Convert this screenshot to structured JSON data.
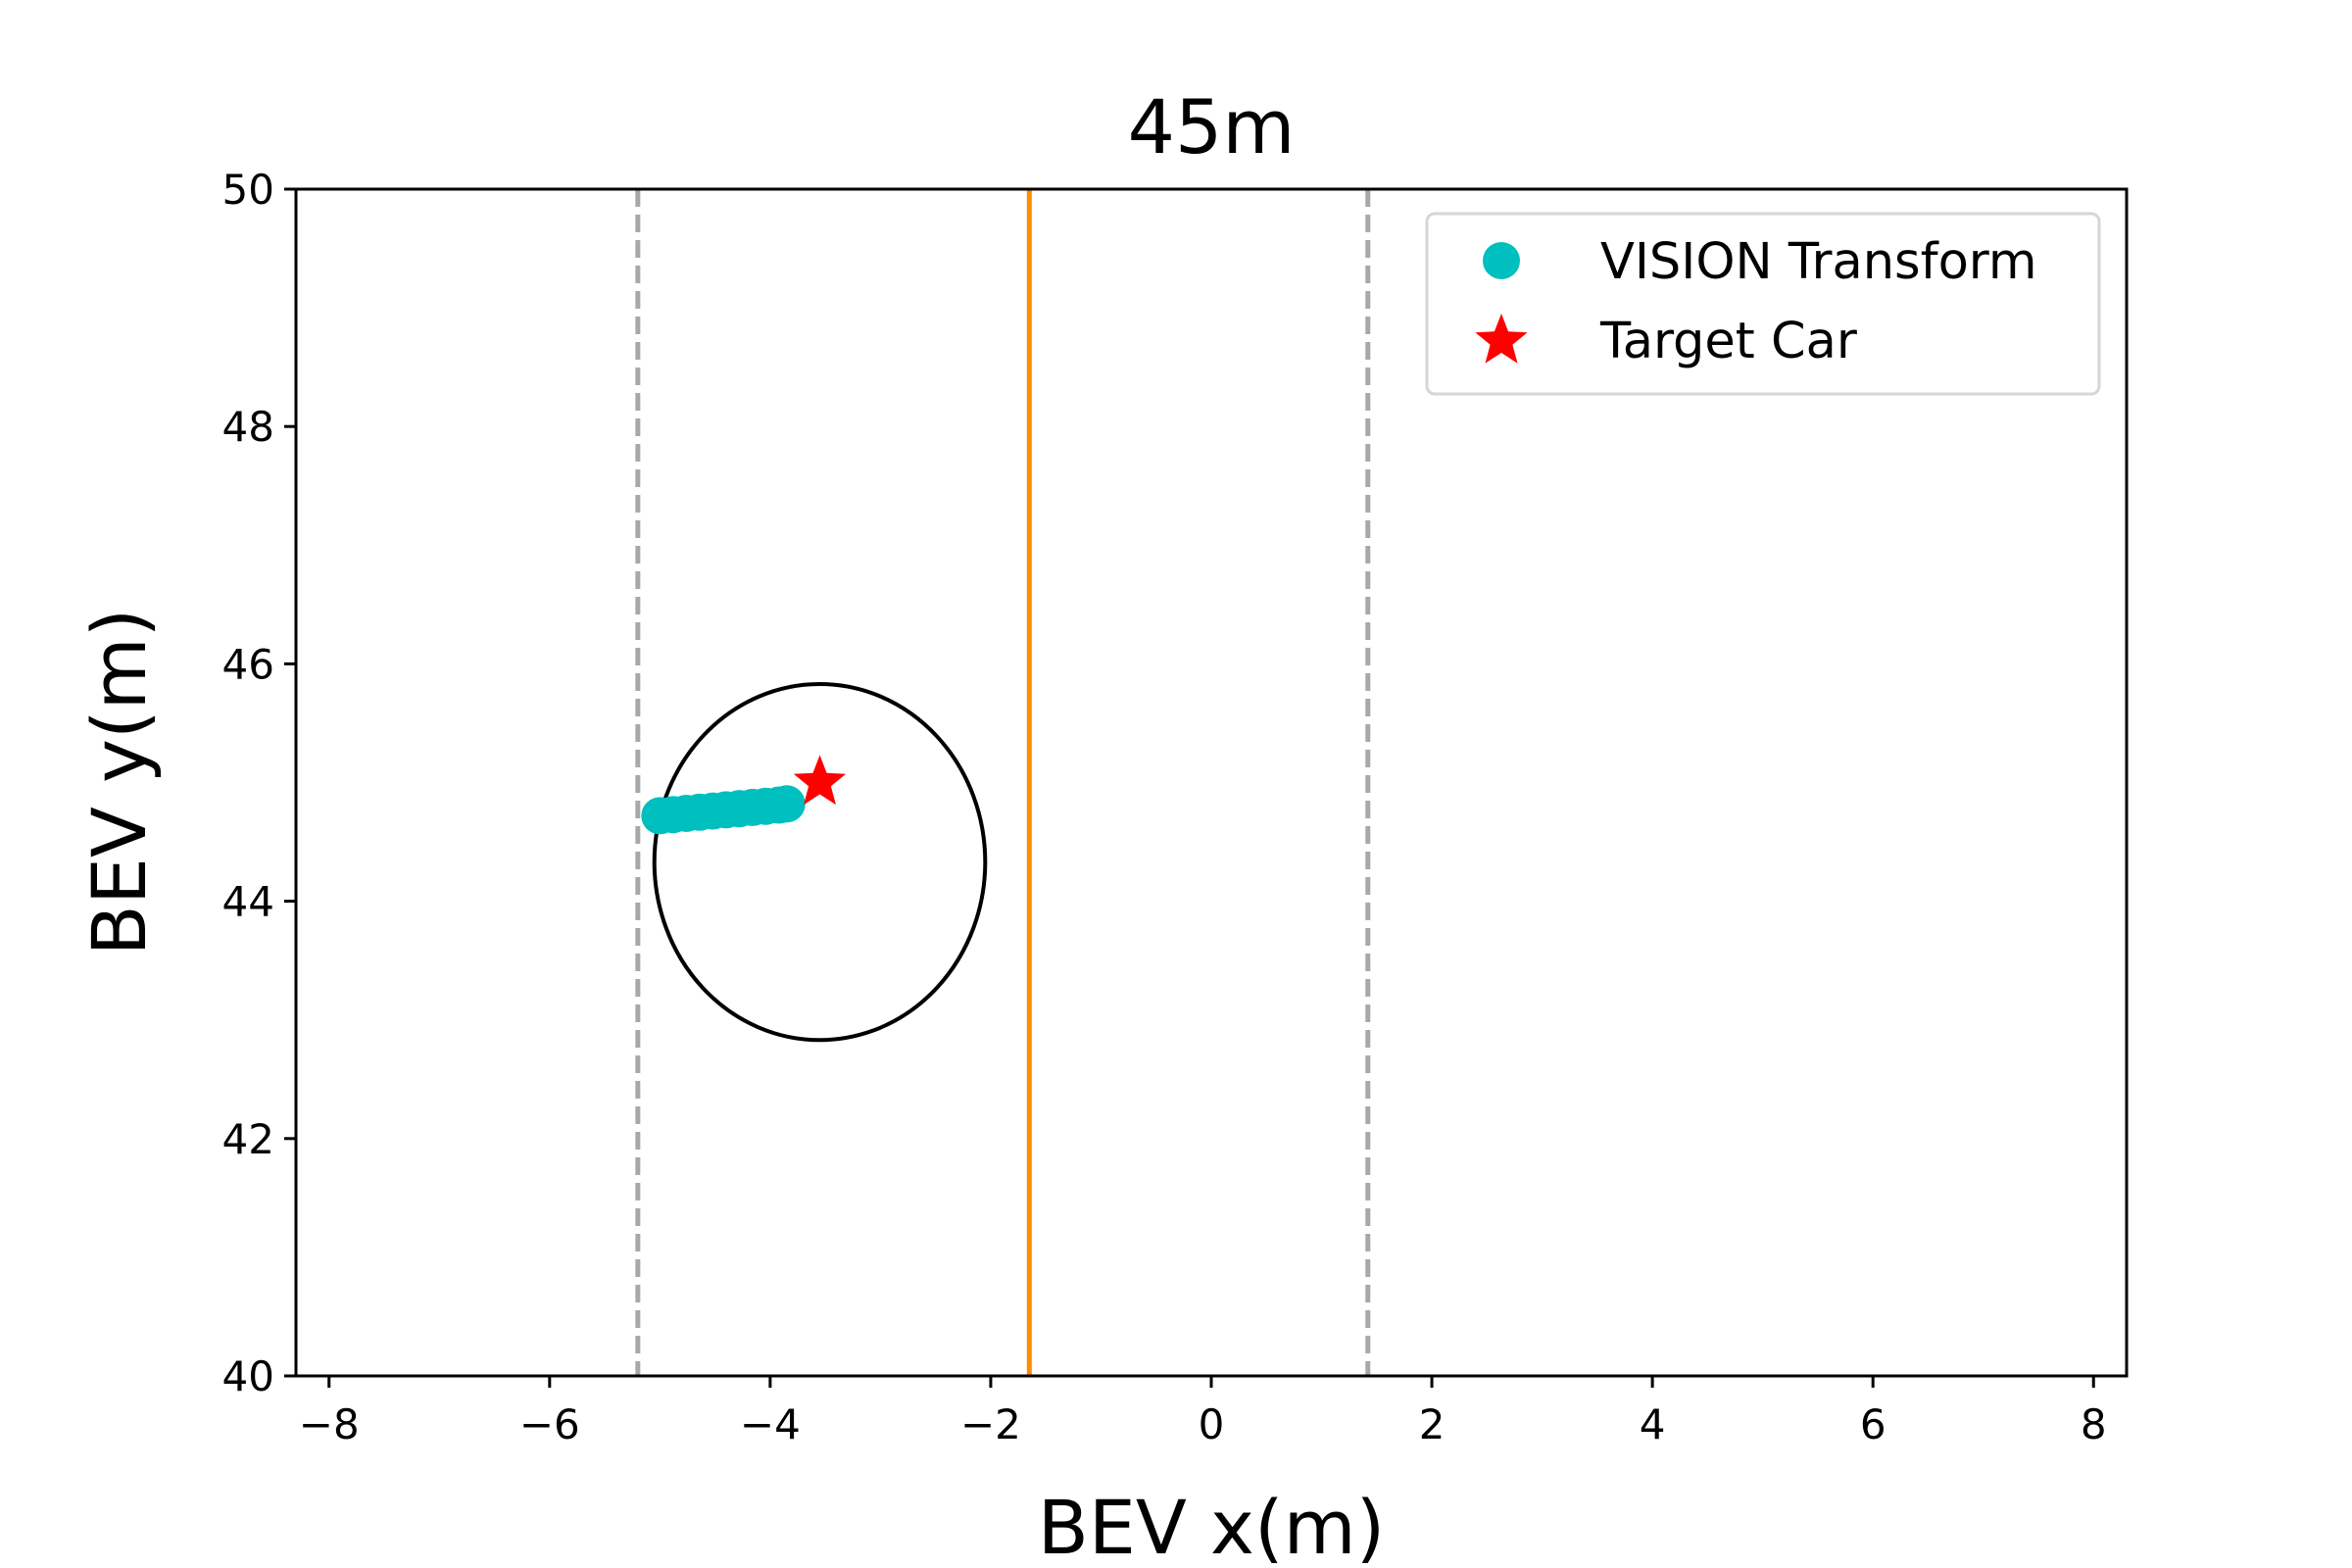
{
  "chart_data": {
    "type": "scatter",
    "title": "45m",
    "xlabel": "BEV x(m)",
    "ylabel": "BEV y(m)",
    "xlim": [
      -8.3,
      8.3
    ],
    "ylim": [
      40,
      50
    ],
    "xticks": [
      -8,
      -6,
      -4,
      -2,
      0,
      2,
      4,
      6,
      8
    ],
    "xtick_labels": [
      "−8",
      "−6",
      "−4",
      "−2",
      "0",
      "2",
      "4",
      "6",
      "8"
    ],
    "yticks": [
      40,
      42,
      44,
      46,
      48,
      50
    ],
    "ytick_labels": [
      "40",
      "42",
      "44",
      "46",
      "48",
      "50"
    ],
    "grid": false,
    "legend_position": "top-right",
    "series": [
      {
        "name": "VISION Transform",
        "marker": "circle",
        "color": "#00bfbf",
        "x": [
          -5.0,
          -4.88,
          -4.76,
          -4.64,
          -4.52,
          -4.4,
          -4.28,
          -4.16,
          -4.04,
          -3.92,
          -3.85
        ],
        "y": [
          44.72,
          44.73,
          44.74,
          44.75,
          44.76,
          44.77,
          44.78,
          44.79,
          44.8,
          44.81,
          44.82
        ]
      },
      {
        "name": "Target Car",
        "marker": "star",
        "color": "#ff0000",
        "x": [
          -3.55
        ],
        "y": [
          45.0
        ]
      }
    ],
    "vertical_lines": [
      {
        "x": -5.2,
        "style": "dashed",
        "color": "#a8a8a8"
      },
      {
        "x": -1.65,
        "style": "solid",
        "color": "#ff8c00"
      },
      {
        "x": 1.42,
        "style": "dashed",
        "color": "#a8a8a8"
      }
    ],
    "ellipse": {
      "cx": -3.55,
      "cy": 44.33,
      "rx": 1.5,
      "ry": 1.5,
      "color": "#000000"
    }
  }
}
